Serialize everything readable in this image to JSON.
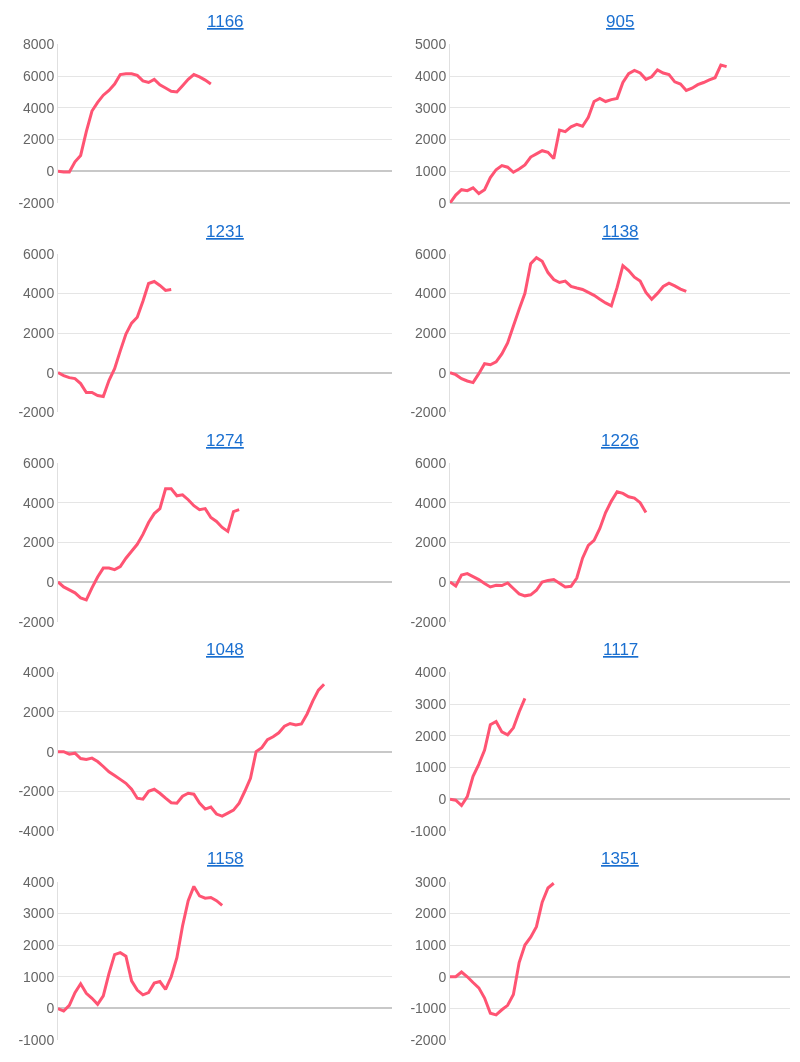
{
  "chart_data": [
    {
      "type": "line",
      "title": "1166",
      "color": "#ff5473",
      "grid": "y",
      "ylim": [
        -2000,
        8000
      ],
      "yticks": [
        -2000,
        0,
        2000,
        4000,
        6000,
        8000
      ],
      "categories": [
        null,
        null,
        null,
        null,
        null,
        null,
        null,
        null,
        null,
        null,
        null,
        null,
        null,
        null,
        null,
        null,
        null,
        null,
        null,
        null,
        null,
        null,
        null,
        null,
        null,
        null,
        null,
        null,
        null,
        null,
        null,
        null,
        null,
        null,
        null,
        null,
        null,
        null,
        null,
        null,
        null,
        null,
        null,
        null,
        null,
        null,
        null,
        null,
        null,
        null,
        null,
        null,
        null,
        null,
        null,
        null,
        null,
        null,
        null,
        null
      ],
      "values": [
        0,
        -50,
        -50,
        600,
        1000,
        2500,
        3800,
        4350,
        4800,
        5100,
        5500,
        6100,
        6150,
        6150,
        6050,
        5700,
        5600,
        5800,
        5450,
        5250,
        5050,
        5000,
        5400,
        5800,
        6100,
        5950,
        5750,
        5500,
        null,
        null,
        null,
        null,
        null,
        null,
        null,
        null,
        null,
        null,
        null,
        null,
        null,
        null,
        null,
        null,
        null,
        null,
        null,
        null,
        null,
        null,
        null,
        null,
        null,
        null,
        null,
        null,
        null,
        null,
        null,
        null
      ]
    },
    {
      "type": "line",
      "title": "905",
      "color": "#ff5473",
      "grid": "y",
      "ylim": [
        0,
        5000
      ],
      "yticks": [
        0,
        1000,
        2000,
        3000,
        4000,
        5000
      ],
      "categories": [
        null,
        null,
        null,
        null,
        null,
        null,
        null,
        null,
        null,
        null,
        null,
        null,
        null,
        null,
        null,
        null,
        null,
        null,
        null,
        null,
        null,
        null,
        null,
        null,
        null,
        null,
        null,
        null,
        null,
        null,
        null,
        null,
        null,
        null,
        null,
        null,
        null,
        null,
        null,
        null,
        null,
        null,
        null,
        null,
        null,
        null,
        null,
        null,
        null,
        null,
        null,
        null,
        null,
        null,
        null,
        null,
        null,
        null,
        null,
        null
      ],
      "values": [
        0,
        250,
        420,
        390,
        480,
        300,
        420,
        800,
        1050,
        1180,
        1130,
        970,
        1070,
        1200,
        1450,
        1550,
        1650,
        1600,
        1400,
        2300,
        2250,
        2400,
        2480,
        2420,
        2700,
        3200,
        3300,
        3200,
        3260,
        3300,
        3800,
        4080,
        4180,
        4100,
        3900,
        3980,
        4200,
        4100,
        4050,
        3820,
        3750,
        3550,
        3620,
        3730,
        3800,
        3880,
        3950,
        4350,
        4300,
        null,
        null,
        null,
        null,
        null,
        null,
        null,
        null,
        null,
        null,
        null
      ]
    },
    {
      "type": "line",
      "title": "1231",
      "color": "#ff5473",
      "grid": "y",
      "ylim": [
        -2000,
        6000
      ],
      "yticks": [
        -2000,
        0,
        2000,
        4000,
        6000
      ],
      "categories": [
        null,
        null,
        null,
        null,
        null,
        null,
        null,
        null,
        null,
        null,
        null,
        null,
        null,
        null,
        null,
        null,
        null,
        null,
        null,
        null,
        null,
        null,
        null,
        null,
        null,
        null,
        null,
        null,
        null,
        null,
        null,
        null,
        null,
        null,
        null,
        null,
        null,
        null,
        null,
        null,
        null,
        null,
        null,
        null,
        null,
        null,
        null,
        null,
        null,
        null,
        null,
        null,
        null,
        null,
        null,
        null,
        null,
        null,
        null,
        null
      ],
      "values": [
        0,
        -150,
        -250,
        -300,
        -550,
        -1000,
        -1000,
        -1150,
        -1200,
        -400,
        200,
        1100,
        1950,
        2500,
        2800,
        3600,
        4500,
        4600,
        4400,
        4150,
        4200,
        null,
        null,
        null,
        null,
        null,
        null,
        null,
        null,
        null,
        null,
        null,
        null,
        null,
        null,
        null,
        null,
        null,
        null,
        null,
        null,
        null,
        null,
        null,
        null,
        null,
        null,
        null,
        null,
        null,
        null,
        null,
        null,
        null,
        null,
        null,
        null,
        null,
        null,
        null
      ]
    },
    {
      "type": "line",
      "title": "1138",
      "color": "#ff5473",
      "grid": "y",
      "ylim": [
        -2000,
        6000
      ],
      "yticks": [
        -2000,
        0,
        2000,
        4000,
        6000
      ],
      "categories": [
        null,
        null,
        null,
        null,
        null,
        null,
        null,
        null,
        null,
        null,
        null,
        null,
        null,
        null,
        null,
        null,
        null,
        null,
        null,
        null,
        null,
        null,
        null,
        null,
        null,
        null,
        null,
        null,
        null,
        null,
        null,
        null,
        null,
        null,
        null,
        null,
        null,
        null,
        null,
        null,
        null,
        null,
        null,
        null,
        null,
        null,
        null,
        null,
        null,
        null,
        null,
        null,
        null,
        null,
        null,
        null,
        null,
        null,
        null,
        null
      ],
      "values": [
        0,
        -100,
        -300,
        -420,
        -500,
        -50,
        450,
        400,
        550,
        950,
        1500,
        2350,
        3200,
        4000,
        5500,
        5800,
        5620,
        5050,
        4700,
        4550,
        4620,
        4350,
        4270,
        4200,
        4050,
        3900,
        3700,
        3520,
        3370,
        4300,
        5400,
        5150,
        4820,
        4620,
        4050,
        3700,
        4000,
        4350,
        4520,
        4380,
        4220,
        4100,
        null,
        null,
        null,
        null,
        null,
        null,
        null,
        null,
        null,
        null,
        null,
        null,
        null,
        null,
        null,
        null,
        null,
        null
      ]
    },
    {
      "type": "line",
      "title": "1274",
      "color": "#ff5473",
      "grid": "y",
      "ylim": [
        -2000,
        6000
      ],
      "yticks": [
        -2000,
        0,
        2000,
        4000,
        6000
      ],
      "categories": [
        null,
        null,
        null,
        null,
        null,
        null,
        null,
        null,
        null,
        null,
        null,
        null,
        null,
        null,
        null,
        null,
        null,
        null,
        null,
        null,
        null,
        null,
        null,
        null,
        null,
        null,
        null,
        null,
        null,
        null,
        null,
        null,
        null,
        null,
        null,
        null,
        null,
        null,
        null,
        null,
        null,
        null,
        null,
        null,
        null,
        null,
        null,
        null,
        null,
        null,
        null,
        null,
        null,
        null,
        null,
        null,
        null,
        null,
        null,
        null
      ],
      "values": [
        0,
        -250,
        -400,
        -550,
        -800,
        -900,
        -300,
        250,
        700,
        700,
        620,
        780,
        1200,
        1550,
        1900,
        2400,
        3000,
        3450,
        3700,
        4700,
        4700,
        4350,
        4400,
        4150,
        3850,
        3650,
        3700,
        3250,
        3050,
        2750,
        2550,
        3550,
        3650,
        null,
        null,
        null,
        null,
        null,
        null,
        null,
        null,
        null,
        null,
        null,
        null,
        null,
        null,
        null,
        null,
        null,
        null,
        null,
        null,
        null,
        null,
        null,
        null,
        null,
        null,
        null
      ]
    },
    {
      "type": "line",
      "title": "1226",
      "color": "#ff5473",
      "grid": "y",
      "ylim": [
        -2000,
        6000
      ],
      "yticks": [
        -2000,
        0,
        2000,
        4000,
        6000
      ],
      "categories": [
        null,
        null,
        null,
        null,
        null,
        null,
        null,
        null,
        null,
        null,
        null,
        null,
        null,
        null,
        null,
        null,
        null,
        null,
        null,
        null,
        null,
        null,
        null,
        null,
        null,
        null,
        null,
        null,
        null,
        null,
        null,
        null,
        null,
        null,
        null,
        null,
        null,
        null,
        null,
        null,
        null,
        null,
        null,
        null,
        null,
        null,
        null,
        null,
        null,
        null,
        null,
        null,
        null,
        null,
        null,
        null,
        null,
        null,
        null,
        null
      ],
      "values": [
        0,
        -200,
        350,
        420,
        270,
        120,
        -80,
        -250,
        -170,
        -180,
        -50,
        -330,
        -600,
        -700,
        -650,
        -420,
        0,
        80,
        120,
        -60,
        -250,
        -220,
        200,
        1200,
        1850,
        2100,
        2700,
        3500,
        4080,
        4550,
        4470,
        4300,
        4230,
        4000,
        3500,
        null,
        null,
        null,
        null,
        null,
        null,
        null,
        null,
        null,
        null,
        null,
        null,
        null,
        null,
        null,
        null,
        null,
        null,
        null,
        null,
        null,
        null,
        null,
        null,
        null
      ]
    },
    {
      "type": "line",
      "title": "1048",
      "color": "#ff5473",
      "grid": "y",
      "ylim": [
        -4000,
        4000
      ],
      "yticks": [
        -4000,
        -2000,
        0,
        2000,
        4000
      ],
      "categories": [
        null,
        null,
        null,
        null,
        null,
        null,
        null,
        null,
        null,
        null,
        null,
        null,
        null,
        null,
        null,
        null,
        null,
        null,
        null,
        null,
        null,
        null,
        null,
        null,
        null,
        null,
        null,
        null,
        null,
        null,
        null,
        null,
        null,
        null,
        null,
        null,
        null,
        null,
        null,
        null,
        null,
        null,
        null,
        null,
        null,
        null,
        null,
        null,
        null,
        null,
        null,
        null,
        null,
        null,
        null,
        null,
        null,
        null,
        null,
        null
      ],
      "values": [
        0,
        0,
        -130,
        -80,
        -350,
        -400,
        -330,
        -500,
        -750,
        -1020,
        -1200,
        -1400,
        -1600,
        -1900,
        -2350,
        -2400,
        -2000,
        -1900,
        -2100,
        -2350,
        -2580,
        -2600,
        -2250,
        -2100,
        -2150,
        -2600,
        -2900,
        -2800,
        -3150,
        -3250,
        -3100,
        -2950,
        -2600,
        -2000,
        -1350,
        0,
        200,
        600,
        750,
        950,
        1280,
        1420,
        1350,
        1400,
        1900,
        2550,
        3100,
        3400,
        null,
        null,
        null,
        null,
        null,
        null,
        null,
        null,
        null,
        null,
        null,
        null
      ]
    },
    {
      "type": "line",
      "title": "1117",
      "color": "#ff5473",
      "grid": "y",
      "ylim": [
        -1000,
        4000
      ],
      "yticks": [
        -1000,
        0,
        1000,
        2000,
        3000,
        4000
      ],
      "categories": [
        null,
        null,
        null,
        null,
        null,
        null,
        null,
        null,
        null,
        null,
        null,
        null,
        null,
        null,
        null,
        null,
        null,
        null,
        null,
        null,
        null,
        null,
        null,
        null,
        null,
        null,
        null,
        null,
        null,
        null,
        null,
        null,
        null,
        null,
        null,
        null,
        null,
        null,
        null,
        null,
        null,
        null,
        null,
        null,
        null,
        null,
        null,
        null,
        null,
        null,
        null,
        null,
        null,
        null,
        null,
        null,
        null,
        null,
        null,
        null
      ],
      "values": [
        0,
        -30,
        -200,
        80,
        720,
        1100,
        1550,
        2350,
        2450,
        2120,
        2030,
        2250,
        2750,
        3180,
        null,
        null,
        null,
        null,
        null,
        null,
        null,
        null,
        null,
        null,
        null,
        null,
        null,
        null,
        null,
        null,
        null,
        null,
        null,
        null,
        null,
        null,
        null,
        null,
        null,
        null,
        null,
        null,
        null,
        null,
        null,
        null,
        null,
        null,
        null,
        null,
        null,
        null,
        null,
        null,
        null,
        null,
        null,
        null,
        null,
        null
      ]
    },
    {
      "type": "line",
      "title": "1158",
      "color": "#ff5473",
      "grid": "y",
      "ylim": [
        -1000,
        4000
      ],
      "yticks": [
        -1000,
        0,
        1000,
        2000,
        3000,
        4000
      ],
      "categories": [
        null,
        null,
        null,
        null,
        null,
        null,
        null,
        null,
        null,
        null,
        null,
        null,
        null,
        null,
        null,
        null,
        null,
        null,
        null,
        null,
        null,
        null,
        null,
        null,
        null,
        null,
        null,
        null,
        null,
        null,
        null,
        null,
        null,
        null,
        null,
        null,
        null,
        null,
        null,
        null,
        null,
        null,
        null,
        null,
        null,
        null,
        null,
        null,
        null,
        null,
        null,
        null,
        null,
        null,
        null,
        null,
        null,
        null,
        null,
        null
      ],
      "values": [
        0,
        -80,
        100,
        500,
        780,
        480,
        320,
        130,
        400,
        1100,
        1700,
        1760,
        1650,
        870,
        580,
        430,
        500,
        800,
        850,
        600,
        1000,
        1600,
        2600,
        3400,
        3850,
        3550,
        3480,
        3500,
        3400,
        3250,
        null,
        null,
        null,
        null,
        null,
        null,
        null,
        null,
        null,
        null,
        null,
        null,
        null,
        null,
        null,
        null,
        null,
        null,
        null,
        null,
        null,
        null,
        null,
        null,
        null,
        null,
        null,
        null,
        null,
        null
      ]
    },
    {
      "type": "line",
      "title": "1351",
      "color": "#ff5473",
      "grid": "y",
      "ylim": [
        -2000,
        3000
      ],
      "yticks": [
        -2000,
        -1000,
        0,
        1000,
        2000,
        3000
      ],
      "categories": [
        null,
        null,
        null,
        null,
        null,
        null,
        null,
        null,
        null,
        null,
        null,
        null,
        null,
        null,
        null,
        null,
        null,
        null,
        null,
        null,
        null,
        null,
        null,
        null,
        null,
        null,
        null,
        null,
        null,
        null,
        null,
        null,
        null,
        null,
        null,
        null,
        null,
        null,
        null,
        null,
        null,
        null,
        null,
        null,
        null,
        null,
        null,
        null,
        null,
        null,
        null,
        null,
        null,
        null,
        null,
        null,
        null,
        null,
        null,
        null
      ],
      "values": [
        0,
        0,
        150,
        0,
        -180,
        -350,
        -670,
        -1150,
        -1200,
        -1040,
        -900,
        -560,
        450,
        1000,
        1250,
        1580,
        2350,
        2800,
        2950,
        null,
        null,
        null,
        null,
        null,
        null,
        null,
        null,
        null,
        null,
        null,
        null,
        null,
        null,
        null,
        null,
        null,
        null,
        null,
        null,
        null,
        null,
        null,
        null,
        null,
        null,
        null,
        null,
        null,
        null,
        null,
        null,
        null,
        null,
        null,
        null,
        null,
        null,
        null,
        null,
        null
      ]
    }
  ]
}
